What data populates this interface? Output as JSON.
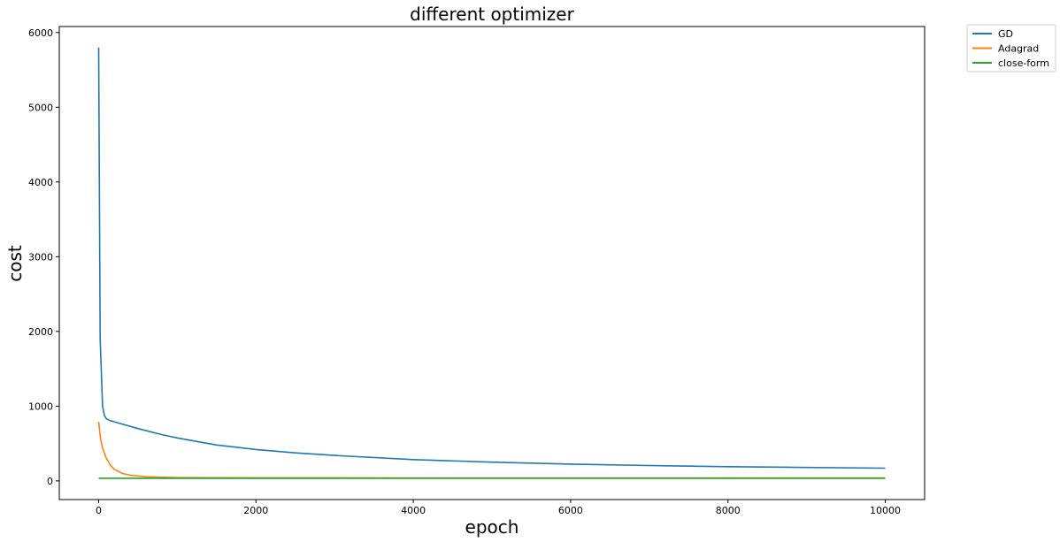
{
  "chart_data": {
    "type": "line",
    "title": "different optimizer",
    "xlabel": "epoch",
    "ylabel": "cost",
    "xlim": [
      -500,
      10500
    ],
    "ylim": [
      -250,
      6080
    ],
    "xticks": [
      0,
      2000,
      4000,
      6000,
      8000,
      10000
    ],
    "yticks": [
      0,
      1000,
      2000,
      3000,
      4000,
      5000,
      6000
    ],
    "grid": false,
    "legend_position": "outside-top-right",
    "series": [
      {
        "name": "GD",
        "color": "#1f77b4",
        "x": [
          0,
          20,
          50,
          75,
          100,
          150,
          200,
          300,
          500,
          800,
          1000,
          1500,
          2000,
          2500,
          3000,
          4000,
          5000,
          6000,
          7000,
          8000,
          9000,
          10000
        ],
        "y": [
          5800,
          1900,
          1000,
          870,
          830,
          805,
          790,
          760,
          700,
          620,
          575,
          480,
          420,
          375,
          340,
          285,
          250,
          225,
          205,
          190,
          180,
          170
        ]
      },
      {
        "name": "Adagrad",
        "color": "#ff7f0e",
        "x": [
          0,
          25,
          50,
          100,
          150,
          200,
          300,
          400,
          600,
          800,
          1000,
          1500,
          2000,
          4000,
          6000,
          8000,
          10000
        ],
        "y": [
          790,
          560,
          440,
          300,
          210,
          155,
          100,
          75,
          55,
          48,
          44,
          42,
          41,
          40,
          40,
          40,
          40
        ]
      },
      {
        "name": "close-form",
        "color": "#2ca02c",
        "x": [
          0,
          10000
        ],
        "y": [
          35,
          35
        ]
      }
    ]
  }
}
